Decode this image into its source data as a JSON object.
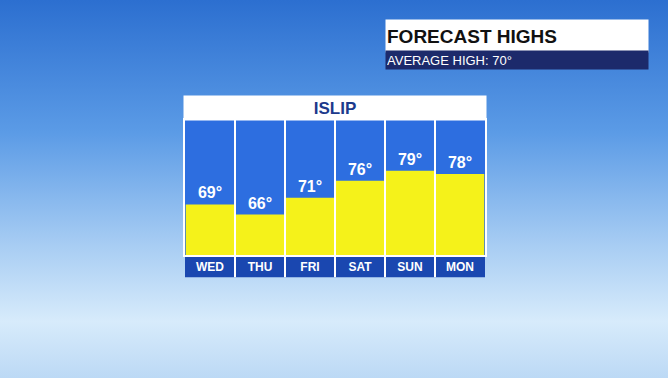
{
  "chart_data": {
    "type": "bar",
    "title": "ISLIP",
    "annotations": [
      "FORECAST HIGHS",
      "AVERAGE HIGH: 70°"
    ],
    "categories": [
      "WED",
      "THU",
      "FRI",
      "SAT",
      "SUN",
      "MON"
    ],
    "values": [
      69,
      66,
      71,
      76,
      79,
      78
    ],
    "value_labels": [
      "69°",
      "66°",
      "71°",
      "76°",
      "79°",
      "78°"
    ],
    "color": "#f5f21a",
    "ylim": [
      54,
      94
    ],
    "grid": false,
    "data_labels": true,
    "tick_labels": "x"
  }
}
